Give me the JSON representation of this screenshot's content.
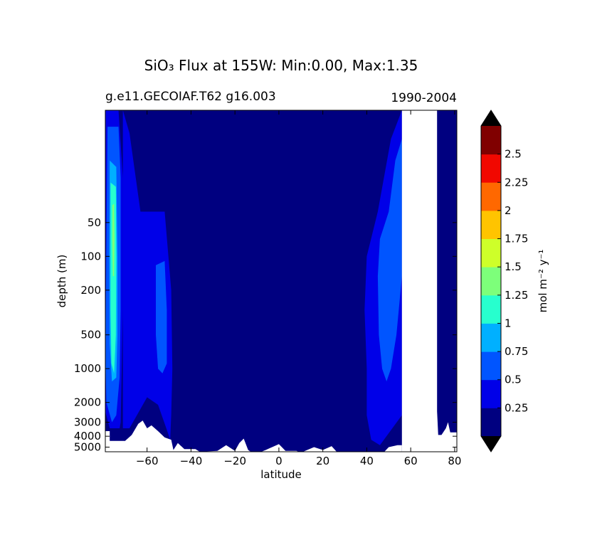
{
  "chart_data": {
    "type": "heatmap",
    "title": "SiO₃ Flux at 155W: Min:0.00, Max:1.35",
    "subtitle_left": "g.e11.GECOIAF.T62 g16.003",
    "subtitle_right": "1990-2004",
    "xlabel": "latitude",
    "ylabel": "depth (m)",
    "xlim": [
      -79,
      81
    ],
    "ylim_depth_m": [
      5500,
      5
    ],
    "y_scale": "log",
    "x_ticks": [
      -60,
      -40,
      -20,
      0,
      20,
      40,
      60,
      80
    ],
    "x_tick_labels": [
      "−60",
      "−40",
      "−20",
      "0",
      "20",
      "40",
      "60",
      "80"
    ],
    "y_ticks": [
      50,
      100,
      200,
      500,
      1000,
      2000,
      3000,
      4000,
      5000
    ],
    "y_tick_labels": [
      "50",
      "100",
      "200",
      "500",
      "1000",
      "2000",
      "3000",
      "4000",
      "5000"
    ],
    "colorbar": {
      "label": "mol m⁻² y⁻¹",
      "levels": [
        0.25,
        0.5,
        0.75,
        1,
        1.25,
        1.5,
        1.75,
        2,
        2.25,
        2.5
      ],
      "tick_labels": [
        "0.25",
        "0.5",
        "0.75",
        "1",
        "1.25",
        "1.5",
        "1.75",
        "2",
        "2.25",
        "2.5"
      ],
      "colors": [
        "#000080",
        "#0000e8",
        "#0055ff",
        "#00b0ff",
        "#27ffce",
        "#7dff7a",
        "#ceff29",
        "#ffc400",
        "#ff6800",
        "#f10800",
        "#800000"
      ],
      "extend": "both",
      "under_color": "#000000",
      "over_color": "#000000"
    },
    "background_color": "#000080",
    "fields": [
      {
        "level_index": 1,
        "desc": "southern flank",
        "polygon": [
          [
            -79,
            5
          ],
          [
            -73,
            5
          ],
          [
            -71,
            20
          ],
          [
            -71,
            300
          ],
          [
            -71.5,
            900
          ],
          [
            -72,
            3000
          ],
          [
            -72.5,
            3400
          ],
          [
            -77,
            3400
          ],
          [
            -79,
            2400
          ]
        ]
      },
      {
        "level_index": 1,
        "desc": "southern plume",
        "polygon": [
          [
            -71,
            5
          ],
          [
            -68,
            8
          ],
          [
            -63,
            40
          ],
          [
            -52,
            40
          ],
          [
            -49,
            200
          ],
          [
            -48.5,
            1000
          ],
          [
            -49,
            2600
          ],
          [
            -49.5,
            4300
          ],
          [
            -51,
            3500
          ],
          [
            -55,
            2100
          ],
          [
            -60,
            1800
          ],
          [
            -68,
            3400
          ],
          [
            -71,
            3400
          ]
        ]
      },
      {
        "level_index": 2,
        "desc": "southern core",
        "polygon": [
          [
            -78,
            7
          ],
          [
            -73,
            7
          ],
          [
            -72,
            20
          ],
          [
            -72,
            300
          ],
          [
            -72.5,
            1200
          ],
          [
            -74,
            2600
          ],
          [
            -76,
            3000
          ],
          [
            -78.5,
            2000
          ],
          [
            -79,
            800
          ]
        ]
      },
      {
        "level_index": 2,
        "desc": "mid-depth band",
        "polygon": [
          [
            -56,
            120
          ],
          [
            -52,
            110
          ],
          [
            -51,
            300
          ],
          [
            -51,
            900
          ],
          [
            -53,
            1100
          ],
          [
            -55,
            1000
          ],
          [
            -56,
            500
          ]
        ]
      },
      {
        "level_index": 3,
        "desc": "core",
        "polygon": [
          [
            -77,
            14
          ],
          [
            -74,
            16
          ],
          [
            -73.5,
            100
          ],
          [
            -73.5,
            500
          ],
          [
            -74,
            1200
          ],
          [
            -76,
            1300
          ],
          [
            -77,
            600
          ],
          [
            -77.2,
            100
          ]
        ]
      },
      {
        "level_index": 4,
        "desc": "core",
        "polygon": [
          [
            -76.6,
            22
          ],
          [
            -74.2,
            24
          ],
          [
            -74,
            100
          ],
          [
            -74.2,
            500
          ],
          [
            -75,
            1100
          ],
          [
            -76.2,
            900
          ],
          [
            -76.6,
            300
          ]
        ]
      },
      {
        "level_index": 5,
        "desc": "core",
        "polygon": [
          [
            -75.8,
            35
          ],
          [
            -75,
            34
          ],
          [
            -74.8,
            70
          ],
          [
            -75,
            150
          ],
          [
            -75.6,
            150
          ],
          [
            -75.9,
            70
          ]
        ]
      },
      {
        "level_index": 1,
        "desc": "northern band",
        "polygon": [
          [
            56,
            5
          ],
          [
            51,
            9
          ],
          [
            45,
            40
          ],
          [
            40,
            100
          ],
          [
            39,
            300
          ],
          [
            40,
            1000
          ],
          [
            40,
            2600
          ],
          [
            42,
            4300
          ],
          [
            46,
            4800
          ],
          [
            56,
            2600
          ]
        ]
      },
      {
        "level_index": 2,
        "desc": "northern core",
        "polygon": [
          [
            56,
            9
          ],
          [
            53,
            14
          ],
          [
            50,
            40
          ],
          [
            46,
            70
          ],
          [
            45,
            150
          ],
          [
            45.5,
            500
          ],
          [
            47,
            1000
          ],
          [
            49,
            1300
          ],
          [
            51,
            1000
          ],
          [
            53.5,
            500
          ],
          [
            56,
            150
          ]
        ]
      }
    ],
    "bathymetry": [
      [
        -79,
        3600
      ],
      [
        -77,
        3600
      ],
      [
        -77,
        4400
      ],
      [
        -70,
        4400
      ],
      [
        -67,
        3900
      ],
      [
        -64,
        3100
      ],
      [
        -62,
        2900
      ],
      [
        -60,
        3400
      ],
      [
        -58,
        3200
      ],
      [
        -55,
        3600
      ],
      [
        -52,
        4100
      ],
      [
        -49,
        4300
      ],
      [
        -48,
        5300
      ],
      [
        -46,
        4600
      ],
      [
        -43,
        5200
      ],
      [
        -38,
        5200
      ],
      [
        -36,
        5500
      ],
      [
        -28,
        5400
      ],
      [
        -24,
        4800
      ],
      [
        -20,
        5400
      ],
      [
        -18,
        4600
      ],
      [
        -16,
        4200
      ],
      [
        -14,
        5300
      ],
      [
        -11,
        5800
      ],
      [
        -6,
        5300
      ],
      [
        0,
        4700
      ],
      [
        3,
        5400
      ],
      [
        8,
        5400
      ],
      [
        10,
        5600
      ],
      [
        16,
        5000
      ],
      [
        20,
        5300
      ],
      [
        24,
        4900
      ],
      [
        27,
        5700
      ],
      [
        40,
        5700
      ],
      [
        42,
        5500
      ],
      [
        48,
        5500
      ],
      [
        50,
        5000
      ],
      [
        54,
        4800
      ],
      [
        56,
        4800
      ]
    ],
    "land_column": [
      [
        56,
        0
      ],
      [
        57,
        0
      ],
      [
        60,
        2
      ],
      [
        70,
        2
      ],
      [
        72,
        2
      ],
      [
        72,
        2400
      ],
      [
        72.5,
        3900
      ],
      [
        74,
        3900
      ],
      [
        76,
        3400
      ],
      [
        77,
        3000
      ],
      [
        78,
        3700
      ],
      [
        80,
        3700
      ],
      [
        81,
        3700
      ],
      [
        81,
        5800
      ],
      [
        56,
        5800
      ]
    ]
  }
}
